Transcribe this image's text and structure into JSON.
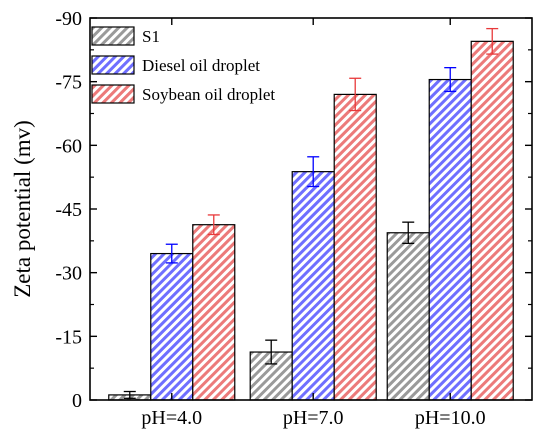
{
  "chart_data": {
    "type": "bar",
    "title": "",
    "xlabel": "",
    "ylabel": "Zeta potential (mv)",
    "categories": [
      "pH=4.0",
      "pH=7.0",
      "pH=10.0"
    ],
    "ylim": [
      0,
      -90
    ],
    "yticks": [
      0,
      -15,
      -30,
      -45,
      -60,
      -75,
      -90
    ],
    "y_tick_labels": [
      "0",
      "-15",
      "-30",
      "-45",
      "-60",
      "-75",
      "-90"
    ],
    "grid": false,
    "legend_position": "top-left",
    "series": [
      {
        "name": "S1",
        "values": [
          -1.2,
          -11.3,
          -39.4
        ],
        "errors": [
          0.8,
          2.8,
          2.5
        ],
        "color": "#000000",
        "fill_color": "#9a9a9a",
        "pattern": "diagonal-hatch"
      },
      {
        "name": "Diesel oil droplet",
        "values": [
          -34.5,
          -53.8,
          -75.5
        ],
        "errors": [
          2.2,
          3.5,
          2.8
        ],
        "color": "#0000ff",
        "fill_color": "#6f6fff",
        "pattern": "diagonal-hatch"
      },
      {
        "name": "Soybean oil droplet",
        "values": [
          -41.3,
          -72.0,
          -84.5
        ],
        "errors": [
          2.3,
          3.8,
          3.0
        ],
        "color": "#e8393a",
        "fill_color": "#ec7a7a",
        "pattern": "diagonal-hatch",
        "error_color": "#e8393a"
      }
    ]
  }
}
